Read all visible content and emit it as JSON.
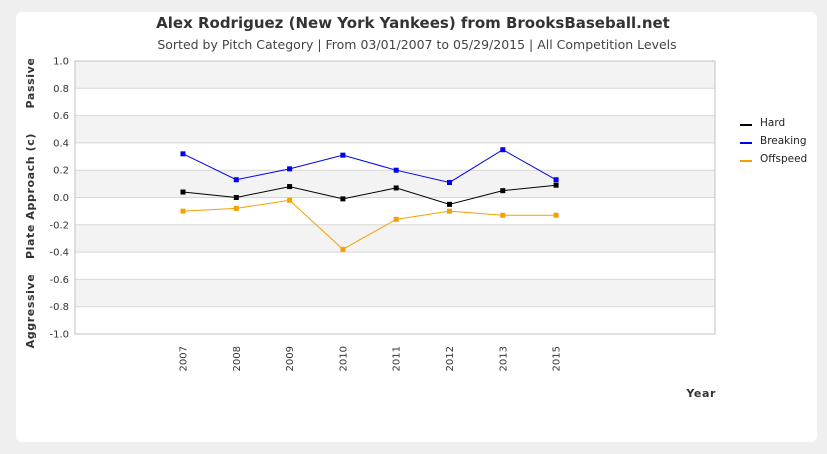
{
  "chart_data": {
    "type": "line",
    "title": "Alex Rodriguez (New York Yankees) from BrooksBaseball.net",
    "subtitle": "Sorted by Pitch Category | From 03/01/2007 to 05/29/2015 | All Competition Levels",
    "xlabel": "Year",
    "ylabel": "Plate Approach (c)",
    "ylabel_top": "Passive",
    "ylabel_bottom": "Aggressive",
    "categories": [
      "2007",
      "2008",
      "2009",
      "2010",
      "2011",
      "2012",
      "2013",
      "2015"
    ],
    "ylim": [
      -1.0,
      1.0
    ],
    "yticks": [
      "1.0",
      "0.8",
      "0.6",
      "0.4",
      "0.2",
      "0.0",
      "-0.2",
      "-0.4",
      "-0.6",
      "-0.8",
      "-1.0"
    ],
    "grid": true,
    "legend_position": "right",
    "series": [
      {
        "name": "Hard",
        "color": "#000000",
        "values": [
          0.04,
          0.0,
          0.08,
          -0.01,
          0.07,
          -0.05,
          0.05,
          0.09
        ]
      },
      {
        "name": "Breaking",
        "color": "#0000ee",
        "values": [
          0.32,
          0.13,
          0.21,
          0.31,
          0.2,
          0.11,
          0.35,
          0.13
        ]
      },
      {
        "name": "Offspeed",
        "color": "#f5a000",
        "values": [
          -0.1,
          -0.08,
          -0.02,
          -0.38,
          -0.16,
          -0.1,
          -0.13,
          -0.13
        ]
      }
    ]
  }
}
